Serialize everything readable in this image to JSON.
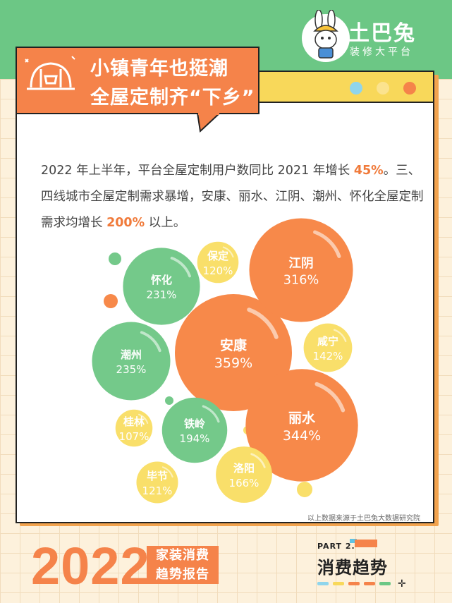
{
  "brand": {
    "name": "土巴兔",
    "subtitle": "装修大平台"
  },
  "banner": {
    "line1": "小镇青年也挺潮",
    "line2": "全屋定制齐“下乡”"
  },
  "colors": {
    "green": "#6cc785",
    "orange": "#f5834a",
    "yellow": "#f8d85a",
    "blue": "#8fd5ec",
    "cream": "#fdf1dc"
  },
  "intro": {
    "line1_a": "2022 年上半年，平台全屋定制用户数同比 2021 年增长 ",
    "line1_hl": "45%",
    "line1_b": "。三、",
    "line2": "四线城市全屋定制需求暴增，安康、丽水、江阴、潮州、怀化全屋定制",
    "line3_a": "需求均增长 ",
    "line3_hl": "200%",
    "line3_b": " 以上。"
  },
  "chart_data": {
    "type": "bubble",
    "title": "",
    "unit": "%",
    "points": [
      {
        "name": "安康",
        "label": "359%",
        "value": 359,
        "color": "orange"
      },
      {
        "name": "丽水",
        "label": "344%",
        "value": 344,
        "color": "orange"
      },
      {
        "name": "江阴",
        "label": "316%",
        "value": 316,
        "color": "orange"
      },
      {
        "name": "潮州",
        "label": "235%",
        "value": 235,
        "color": "green"
      },
      {
        "name": "怀化",
        "label": "231%",
        "value": 231,
        "color": "green"
      },
      {
        "name": "铁岭",
        "label": "194%",
        "value": 194,
        "color": "green"
      },
      {
        "name": "洛阳",
        "label": "166%",
        "value": 166,
        "color": "yellow"
      },
      {
        "name": "咸宁",
        "label": "142%",
        "value": 142,
        "color": "yellow"
      },
      {
        "name": "毕节",
        "label": "121%",
        "value": 121,
        "color": "yellow"
      },
      {
        "name": "保定",
        "label": "120%",
        "value": 120,
        "color": "yellow"
      },
      {
        "name": "桂林",
        "label": "107%",
        "value": 107,
        "color": "yellow"
      }
    ]
  },
  "source_note": "以上数据来源于土巴兔大数据研究院",
  "footer": {
    "year": "2022",
    "tag1": "家装消费",
    "tag2": "趋势报告",
    "part_label": "PART 2.",
    "part_title": "消费趋势"
  }
}
